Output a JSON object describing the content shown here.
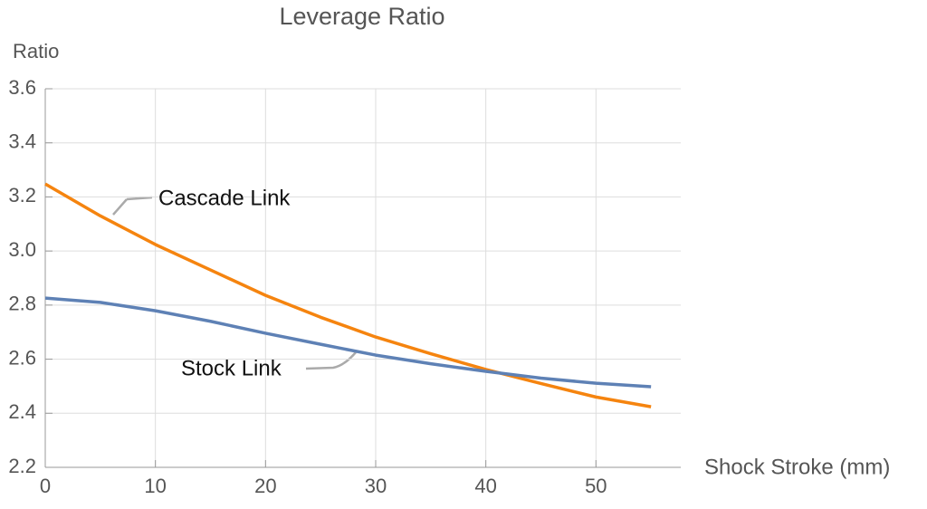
{
  "chart_data": {
    "type": "line",
    "title": "Leverage Ratio",
    "y_label": "Ratio",
    "x_label": "Shock Stroke (mm)",
    "x": [
      0,
      5,
      10,
      15,
      20,
      25,
      30,
      35,
      40,
      45,
      50,
      55
    ],
    "series": [
      {
        "name": "Cascade Link",
        "color": "#f5840f",
        "values": [
          3.248,
          3.13,
          3.024,
          2.93,
          2.836,
          2.755,
          2.682,
          2.62,
          2.562,
          2.51,
          2.46,
          2.424
        ]
      },
      {
        "name": "Stock Link",
        "color": "#5e81b5",
        "values": [
          2.826,
          2.81,
          2.779,
          2.74,
          2.696,
          2.655,
          2.615,
          2.583,
          2.555,
          2.53,
          2.511,
          2.498
        ]
      }
    ],
    "xlim": [
      0,
      57.7
    ],
    "ylim": [
      2.2,
      3.6
    ],
    "xticks": [
      0,
      10,
      20,
      30,
      40,
      50
    ],
    "yticks": [
      2.2,
      2.4,
      2.6,
      2.8,
      {
        "value": 3,
        "label": "3.0"
      },
      3.2,
      3.4,
      3.6
    ],
    "grid": true
  }
}
